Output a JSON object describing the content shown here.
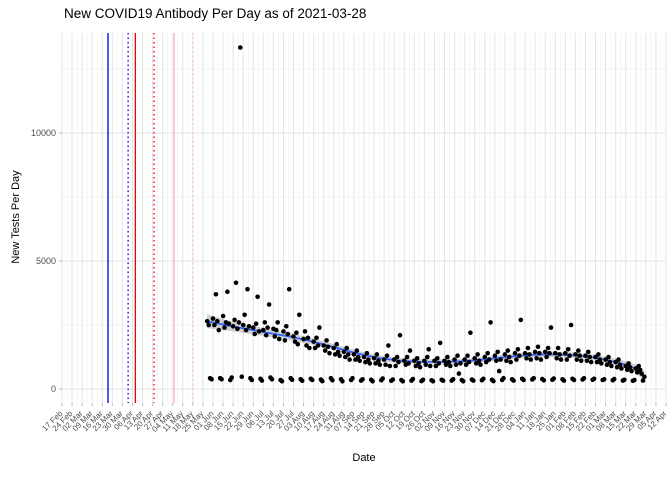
{
  "chart": {
    "title": "New COVID19 Antibody Per Day as of 2021-03-28",
    "xlabel": "Date",
    "ylabel": "New Tests Per Day"
  },
  "chart_data": {
    "type": "scatter",
    "title": "New COVID19 Antibody Per Day as of 2021-03-28",
    "xlabel": "Date",
    "ylabel": "New Tests Per Day",
    "legend": false,
    "grid": true,
    "colors": {
      "point": "#000000",
      "smooth_line": "#3366FF",
      "smooth_ribbon": "rgba(125,125,125,0.35)",
      "grid_major": "#e3e3e3",
      "grid_minor": "#f2f2f2",
      "tick_label": "#4d4d4d",
      "vline_blue": "#0000EE",
      "vline_red": "#EE0000",
      "vline_pink": "#FFB6C1"
    },
    "y_axis": {
      "ticks": [
        0,
        5000,
        10000
      ],
      "minor_ticks": [
        2500,
        7500,
        12500
      ],
      "range": [
        -550,
        13900
      ]
    },
    "x_axis": {
      "tick_interval_days": 7,
      "axis_day_span": 420,
      "tick_labels": [
        "17 Feb",
        "24 Feb",
        "02 Mar",
        "09 Mar",
        "16 Mar",
        "23 Mar",
        "30 Mar",
        "06 Apr",
        "13 Apr",
        "20 Apr",
        "27 Apr",
        "04 May",
        "11 May",
        "18 May",
        "25 May",
        "01 Jun",
        "08 Jun",
        "15 Jun",
        "22 Jun",
        "29 Jun",
        "06 Jul",
        "13 Jul",
        "20 Jul",
        "27 Jul",
        "03 Aug",
        "10 Aug",
        "17 Aug",
        "24 Aug",
        "31 Aug",
        "07 Sep",
        "14 Sep",
        "21 Sep",
        "28 Sep",
        "05 Oct",
        "12 Oct",
        "19 Oct",
        "26 Oct",
        "02 Nov",
        "09 Nov",
        "16 Nov",
        "23 Nov",
        "30 Nov",
        "07 Dec",
        "14 Dec",
        "21 Dec",
        "28 Dec",
        "04 Jan",
        "11 Jan",
        "18 Jan",
        "25 Jan",
        "01 Feb",
        "08 Feb",
        "15 Feb",
        "22 Feb",
        "01 Mar",
        "08 Mar",
        "15 Mar",
        "22 Mar",
        "29 Mar",
        "05 Apr",
        "12 Apr"
      ]
    },
    "vlines": [
      {
        "day": 32,
        "color": "#0000EE",
        "style": "solid"
      },
      {
        "day": 46,
        "color": "#0000EE",
        "style": "dotted"
      },
      {
        "day": 51,
        "color": "#EE0000",
        "style": "solid"
      },
      {
        "day": 64,
        "color": "#EE0000",
        "style": "dotted"
      },
      {
        "day": 78,
        "color": "#FFB6C1",
        "style": "solid"
      },
      {
        "day": 91,
        "color": "#FFB6C1",
        "style": "dotted"
      }
    ],
    "smooth": [
      [
        101,
        2650,
        270
      ],
      [
        115,
        2480,
        200
      ],
      [
        130,
        2330,
        170
      ],
      [
        145,
        2180,
        150
      ],
      [
        160,
        2030,
        140
      ],
      [
        175,
        1840,
        130
      ],
      [
        190,
        1620,
        120
      ],
      [
        205,
        1390,
        115
      ],
      [
        220,
        1210,
        108
      ],
      [
        235,
        1110,
        102
      ],
      [
        250,
        1060,
        100
      ],
      [
        265,
        1055,
        100
      ],
      [
        280,
        1085,
        100
      ],
      [
        295,
        1160,
        100
      ],
      [
        310,
        1255,
        105
      ],
      [
        325,
        1330,
        108
      ],
      [
        340,
        1350,
        110
      ],
      [
        355,
        1320,
        110
      ],
      [
        370,
        1230,
        115
      ],
      [
        385,
        1060,
        125
      ],
      [
        395,
        890,
        150
      ],
      [
        400,
        760,
        175
      ],
      [
        405,
        480,
        230
      ]
    ],
    "points_day_value": [
      [
        101,
        2650
      ],
      [
        102,
        2500
      ],
      [
        103,
        420
      ],
      [
        104,
        380
      ],
      [
        105,
        2750
      ],
      [
        106,
        2500
      ],
      [
        107,
        3700
      ],
      [
        108,
        2650
      ],
      [
        109,
        2300
      ],
      [
        110,
        420
      ],
      [
        111,
        380
      ],
      [
        112,
        2850
      ],
      [
        113,
        2400
      ],
      [
        114,
        2600
      ],
      [
        115,
        3800
      ],
      [
        116,
        2550
      ],
      [
        117,
        350
      ],
      [
        118,
        450
      ],
      [
        119,
        2450
      ],
      [
        120,
        2700
      ],
      [
        121,
        4150
      ],
      [
        122,
        2350
      ],
      [
        123,
        2600
      ],
      [
        124,
        13340
      ],
      [
        125,
        480
      ],
      [
        126,
        2500
      ],
      [
        127,
        2900
      ],
      [
        128,
        2300
      ],
      [
        129,
        3900
      ],
      [
        130,
        2450
      ],
      [
        131,
        420
      ],
      [
        132,
        350
      ],
      [
        133,
        2400
      ],
      [
        134,
        2150
      ],
      [
        135,
        2550
      ],
      [
        136,
        3600
      ],
      [
        137,
        2250
      ],
      [
        138,
        400
      ],
      [
        139,
        330
      ],
      [
        140,
        2300
      ],
      [
        141,
        2600
      ],
      [
        142,
        2100
      ],
      [
        143,
        2400
      ],
      [
        144,
        3300
      ],
      [
        145,
        450
      ],
      [
        146,
        380
      ],
      [
        147,
        2350
      ],
      [
        148,
        2050
      ],
      [
        149,
        2300
      ],
      [
        150,
        2600
      ],
      [
        151,
        1950
      ],
      [
        152,
        350
      ],
      [
        153,
        300
      ],
      [
        154,
        2250
      ],
      [
        155,
        1900
      ],
      [
        156,
        2450
      ],
      [
        157,
        2150
      ],
      [
        158,
        3900
      ],
      [
        159,
        420
      ],
      [
        160,
        360
      ],
      [
        161,
        2050
      ],
      [
        162,
        1850
      ],
      [
        163,
        2200
      ],
      [
        164,
        1750
      ],
      [
        165,
        2900
      ],
      [
        166,
        380
      ],
      [
        167,
        320
      ],
      [
        168,
        1950
      ],
      [
        169,
        2250
      ],
      [
        170,
        1700
      ],
      [
        171,
        2000
      ],
      [
        172,
        1600
      ],
      [
        173,
        400
      ],
      [
        174,
        350
      ],
      [
        175,
        1850
      ],
      [
        176,
        1600
      ],
      [
        177,
        2000
      ],
      [
        178,
        1700
      ],
      [
        179,
        2400
      ],
      [
        180,
        370
      ],
      [
        181,
        310
      ],
      [
        182,
        1700
      ],
      [
        183,
        1500
      ],
      [
        184,
        1900
      ],
      [
        185,
        1650
      ],
      [
        186,
        1400
      ],
      [
        187,
        420
      ],
      [
        188,
        340
      ],
      [
        189,
        1600
      ],
      [
        190,
        1350
      ],
      [
        191,
        1750
      ],
      [
        192,
        1450
      ],
      [
        193,
        1300
      ],
      [
        194,
        380
      ],
      [
        195,
        300
      ],
      [
        196,
        1450
      ],
      [
        197,
        1250
      ],
      [
        198,
        1600
      ],
      [
        199,
        1350
      ],
      [
        200,
        1150
      ],
      [
        201,
        350
      ],
      [
        202,
        420
      ],
      [
        203,
        1350
      ],
      [
        204,
        1150
      ],
      [
        205,
        1500
      ],
      [
        206,
        1250
      ],
      [
        207,
        1100
      ],
      [
        208,
        330
      ],
      [
        209,
        380
      ],
      [
        210,
        1250
      ],
      [
        211,
        1050
      ],
      [
        212,
        1400
      ],
      [
        213,
        1150
      ],
      [
        214,
        1000
      ],
      [
        215,
        360
      ],
      [
        216,
        300
      ],
      [
        217,
        1200
      ],
      [
        218,
        1000
      ],
      [
        219,
        1350
      ],
      [
        220,
        1100
      ],
      [
        221,
        950
      ],
      [
        222,
        340
      ],
      [
        223,
        410
      ],
      [
        224,
        1150
      ],
      [
        225,
        950
      ],
      [
        226,
        1300
      ],
      [
        227,
        1700
      ],
      [
        228,
        900
      ],
      [
        229,
        320
      ],
      [
        230,
        370
      ],
      [
        231,
        1150
      ],
      [
        232,
        900
      ],
      [
        233,
        1250
      ],
      [
        234,
        1050
      ],
      [
        235,
        2100
      ],
      [
        236,
        350
      ],
      [
        237,
        300
      ],
      [
        238,
        1100
      ],
      [
        239,
        950
      ],
      [
        240,
        1250
      ],
      [
        241,
        1000
      ],
      [
        242,
        1500
      ],
      [
        243,
        330
      ],
      [
        244,
        390
      ],
      [
        245,
        1100
      ],
      [
        246,
        900
      ],
      [
        247,
        1200
      ],
      [
        248,
        1000
      ],
      [
        249,
        850
      ],
      [
        250,
        310
      ],
      [
        251,
        360
      ],
      [
        252,
        1100
      ],
      [
        253,
        950
      ],
      [
        254,
        1250
      ],
      [
        255,
        1550
      ],
      [
        256,
        900
      ],
      [
        257,
        340
      ],
      [
        258,
        300
      ],
      [
        259,
        1100
      ],
      [
        260,
        900
      ],
      [
        261,
        1200
      ],
      [
        262,
        1000
      ],
      [
        263,
        1800
      ],
      [
        264,
        360
      ],
      [
        265,
        320
      ],
      [
        266,
        1100
      ],
      [
        267,
        950
      ],
      [
        268,
        1250
      ],
      [
        269,
        1050
      ],
      [
        270,
        900
      ],
      [
        271,
        330
      ],
      [
        272,
        380
      ],
      [
        273,
        1150
      ],
      [
        274,
        950
      ],
      [
        275,
        1300
      ],
      [
        276,
        600
      ],
      [
        277,
        1000
      ],
      [
        278,
        350
      ],
      [
        279,
        300
      ],
      [
        280,
        1150
      ],
      [
        281,
        950
      ],
      [
        282,
        1300
      ],
      [
        283,
        1050
      ],
      [
        284,
        2200
      ],
      [
        285,
        370
      ],
      [
        286,
        330
      ],
      [
        287,
        1200
      ],
      [
        288,
        1000
      ],
      [
        289,
        1350
      ],
      [
        290,
        1100
      ],
      [
        291,
        950
      ],
      [
        292,
        340
      ],
      [
        293,
        400
      ],
      [
        294,
        1250
      ],
      [
        295,
        1050
      ],
      [
        296,
        1400
      ],
      [
        297,
        1150
      ],
      [
        298,
        2600
      ],
      [
        299,
        360
      ],
      [
        300,
        310
      ],
      [
        301,
        1300
      ],
      [
        302,
        1100
      ],
      [
        303,
        1450
      ],
      [
        304,
        700
      ],
      [
        305,
        1150
      ],
      [
        306,
        350
      ],
      [
        307,
        420
      ],
      [
        308,
        1350
      ],
      [
        309,
        1100
      ],
      [
        310,
        1500
      ],
      [
        311,
        1250
      ],
      [
        312,
        1050
      ],
      [
        313,
        380
      ],
      [
        314,
        330
      ],
      [
        315,
        1400
      ],
      [
        316,
        1150
      ],
      [
        317,
        1550
      ],
      [
        318,
        1300
      ],
      [
        319,
        2700
      ],
      [
        320,
        400
      ],
      [
        321,
        350
      ],
      [
        322,
        1400
      ],
      [
        323,
        1200
      ],
      [
        324,
        1600
      ],
      [
        325,
        1350
      ],
      [
        326,
        1150
      ],
      [
        327,
        370
      ],
      [
        328,
        420
      ],
      [
        329,
        1450
      ],
      [
        330,
        1200
      ],
      [
        331,
        1650
      ],
      [
        332,
        1400
      ],
      [
        333,
        1150
      ],
      [
        334,
        390
      ],
      [
        335,
        340
      ],
      [
        336,
        1450
      ],
      [
        337,
        1250
      ],
      [
        338,
        1600
      ],
      [
        339,
        1400
      ],
      [
        340,
        2400
      ],
      [
        341,
        360
      ],
      [
        342,
        410
      ],
      [
        343,
        1400
      ],
      [
        344,
        1200
      ],
      [
        345,
        1600
      ],
      [
        346,
        1350
      ],
      [
        347,
        1150
      ],
      [
        348,
        380
      ],
      [
        349,
        330
      ],
      [
        350,
        1400
      ],
      [
        351,
        1150
      ],
      [
        352,
        1550
      ],
      [
        353,
        1300
      ],
      [
        354,
        2500
      ],
      [
        355,
        400
      ],
      [
        356,
        350
      ],
      [
        357,
        1350
      ],
      [
        358,
        1150
      ],
      [
        359,
        1500
      ],
      [
        360,
        1300
      ],
      [
        361,
        1100
      ],
      [
        362,
        370
      ],
      [
        363,
        420
      ],
      [
        364,
        1300
      ],
      [
        365,
        1100
      ],
      [
        366,
        1450
      ],
      [
        367,
        1250
      ],
      [
        368,
        1050
      ],
      [
        369,
        360
      ],
      [
        370,
        400
      ],
      [
        371,
        1250
      ],
      [
        372,
        1050
      ],
      [
        373,
        1350
      ],
      [
        374,
        1150
      ],
      [
        375,
        1000
      ],
      [
        376,
        350
      ],
      [
        377,
        380
      ],
      [
        378,
        1150
      ],
      [
        379,
        950
      ],
      [
        380,
        1250
      ],
      [
        381,
        1050
      ],
      [
        382,
        900
      ],
      [
        383,
        340
      ],
      [
        384,
        390
      ],
      [
        385,
        1050
      ],
      [
        386,
        850
      ],
      [
        387,
        1150
      ],
      [
        388,
        950
      ],
      [
        389,
        800
      ],
      [
        390,
        330
      ],
      [
        391,
        360
      ],
      [
        392,
        900
      ],
      [
        393,
        750
      ],
      [
        394,
        1000
      ],
      [
        395,
        850
      ],
      [
        396,
        700
      ],
      [
        397,
        320
      ],
      [
        398,
        350
      ],
      [
        399,
        800
      ],
      [
        400,
        650
      ],
      [
        401,
        900
      ],
      [
        402,
        750
      ],
      [
        403,
        600
      ],
      [
        404,
        330
      ],
      [
        405,
        480
      ]
    ]
  }
}
